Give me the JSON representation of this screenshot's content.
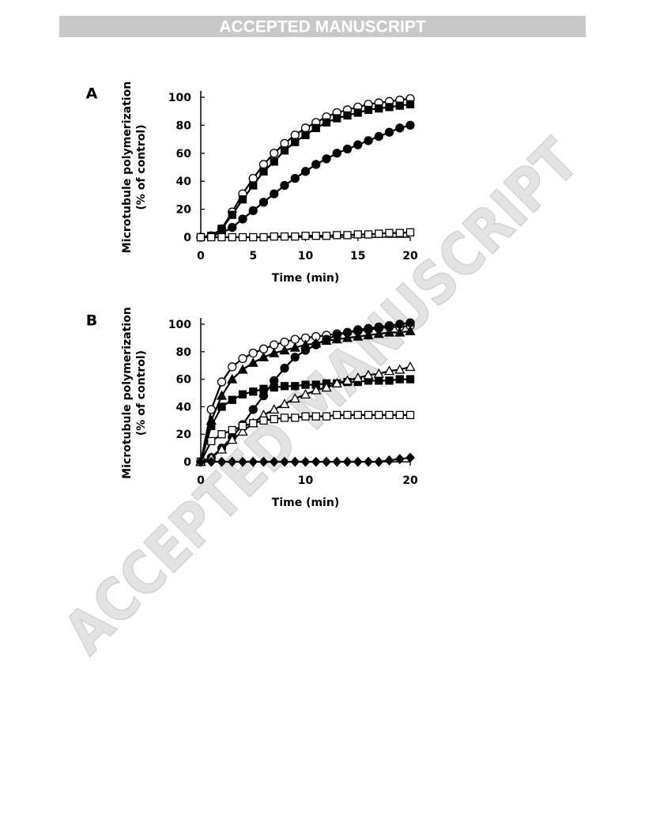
{
  "header": {
    "banner": "ACCEPTED MANUSCRIPT"
  },
  "watermark": "ACCEPTED MANUSCRIPT",
  "chart_data": [
    {
      "type": "line",
      "panel": "A",
      "xlabel": "Time (min)",
      "ylabel": [
        "Microtubule polymerization",
        "(% of control)"
      ],
      "x": [
        0,
        1,
        2,
        3,
        4,
        5,
        6,
        7,
        8,
        9,
        10,
        11,
        12,
        13,
        14,
        15,
        16,
        17,
        18,
        19,
        20
      ],
      "xlim": [
        0,
        20
      ],
      "xticks": [
        0,
        5,
        10,
        15,
        20
      ],
      "ylim": [
        0,
        100
      ],
      "yticks": [
        0,
        20,
        40,
        60,
        80,
        100
      ],
      "series": [
        {
          "color": "#000000",
          "marker": "circle",
          "filled": false,
          "values": [
            0,
            1,
            6,
            18,
            31,
            42,
            52,
            60,
            67,
            73,
            78,
            82,
            86,
            89,
            91,
            93,
            95,
            96,
            97,
            98,
            99
          ]
        },
        {
          "color": "#000000",
          "marker": "square",
          "filled": true,
          "values": [
            0,
            1,
            6,
            16,
            27,
            37,
            47,
            54,
            62,
            68,
            73,
            78,
            82,
            85,
            87,
            89,
            91,
            92,
            93,
            94,
            95
          ]
        },
        {
          "color": "#000000",
          "marker": "circle",
          "filled": true,
          "values": [
            0,
            1,
            3,
            7,
            13,
            19,
            25,
            31,
            37,
            42,
            47,
            52,
            56,
            60,
            63,
            66,
            69,
            72,
            75,
            78,
            80
          ]
        },
        {
          "color": "#000000",
          "marker": "square",
          "filled": false,
          "values": [
            0,
            0,
            0,
            0,
            0,
            0,
            0,
            0.5,
            0.5,
            0.5,
            1,
            1,
            1,
            1.5,
            1.5,
            2,
            2,
            2.5,
            3,
            3,
            3.5
          ]
        }
      ]
    },
    {
      "type": "line",
      "panel": "B",
      "xlabel": "Time (min)",
      "ylabel": [
        "Microtubule polymerization",
        "(% of control)"
      ],
      "x": [
        0,
        1,
        2,
        3,
        4,
        5,
        6,
        7,
        8,
        9,
        10,
        11,
        12,
        13,
        14,
        15,
        16,
        17,
        18,
        19,
        20
      ],
      "xlim": [
        0,
        20
      ],
      "xticks": [
        0,
        10,
        20
      ],
      "ylim": [
        0,
        100
      ],
      "yticks": [
        0,
        20,
        40,
        60,
        80,
        100
      ],
      "series": [
        {
          "color": "#000000",
          "marker": "circle",
          "filled": false,
          "values": [
            0,
            38,
            58,
            69,
            75,
            79,
            82,
            85,
            87,
            89,
            90,
            91,
            92,
            93,
            94,
            95,
            96,
            97,
            98,
            98,
            99
          ]
        },
        {
          "color": "#000000",
          "marker": "triangle",
          "filled": true,
          "values": [
            0,
            30,
            48,
            60,
            67,
            72,
            76,
            79,
            81,
            83,
            85,
            86,
            88,
            89,
            90,
            91,
            92,
            93,
            94,
            94,
            95
          ]
        },
        {
          "color": "#000000",
          "marker": "circle",
          "filled": true,
          "values": [
            0,
            3,
            10,
            18,
            27,
            38,
            48,
            59,
            68,
            76,
            81,
            85,
            89,
            92,
            94,
            96,
            97,
            98,
            99,
            100,
            101
          ]
        },
        {
          "color": "#000000",
          "marker": "square",
          "filled": true,
          "values": [
            0,
            26,
            40,
            45,
            49,
            51,
            53,
            54,
            55,
            55,
            56,
            56,
            57,
            57,
            58,
            58,
            59,
            59,
            59,
            60,
            60
          ]
        },
        {
          "color": "#000000",
          "marker": "triangle",
          "filled": false,
          "values": [
            0,
            3,
            9,
            16,
            22,
            28,
            34,
            38,
            42,
            46,
            49,
            52,
            54,
            57,
            59,
            61,
            63,
            64,
            66,
            67,
            69
          ]
        },
        {
          "color": "#000000",
          "marker": "square",
          "filled": false,
          "values": [
            0,
            15,
            20,
            23,
            26,
            28,
            30,
            31,
            32,
            32,
            33,
            33,
            33,
            34,
            34,
            34,
            34,
            34,
            34,
            34,
            34
          ]
        },
        {
          "color": "#000000",
          "marker": "diamond",
          "filled": true,
          "values": [
            0,
            0,
            0,
            0,
            0,
            0,
            0,
            0,
            0,
            0,
            0,
            0,
            0,
            0,
            0,
            0,
            0,
            0,
            1,
            2,
            3
          ]
        }
      ]
    }
  ]
}
